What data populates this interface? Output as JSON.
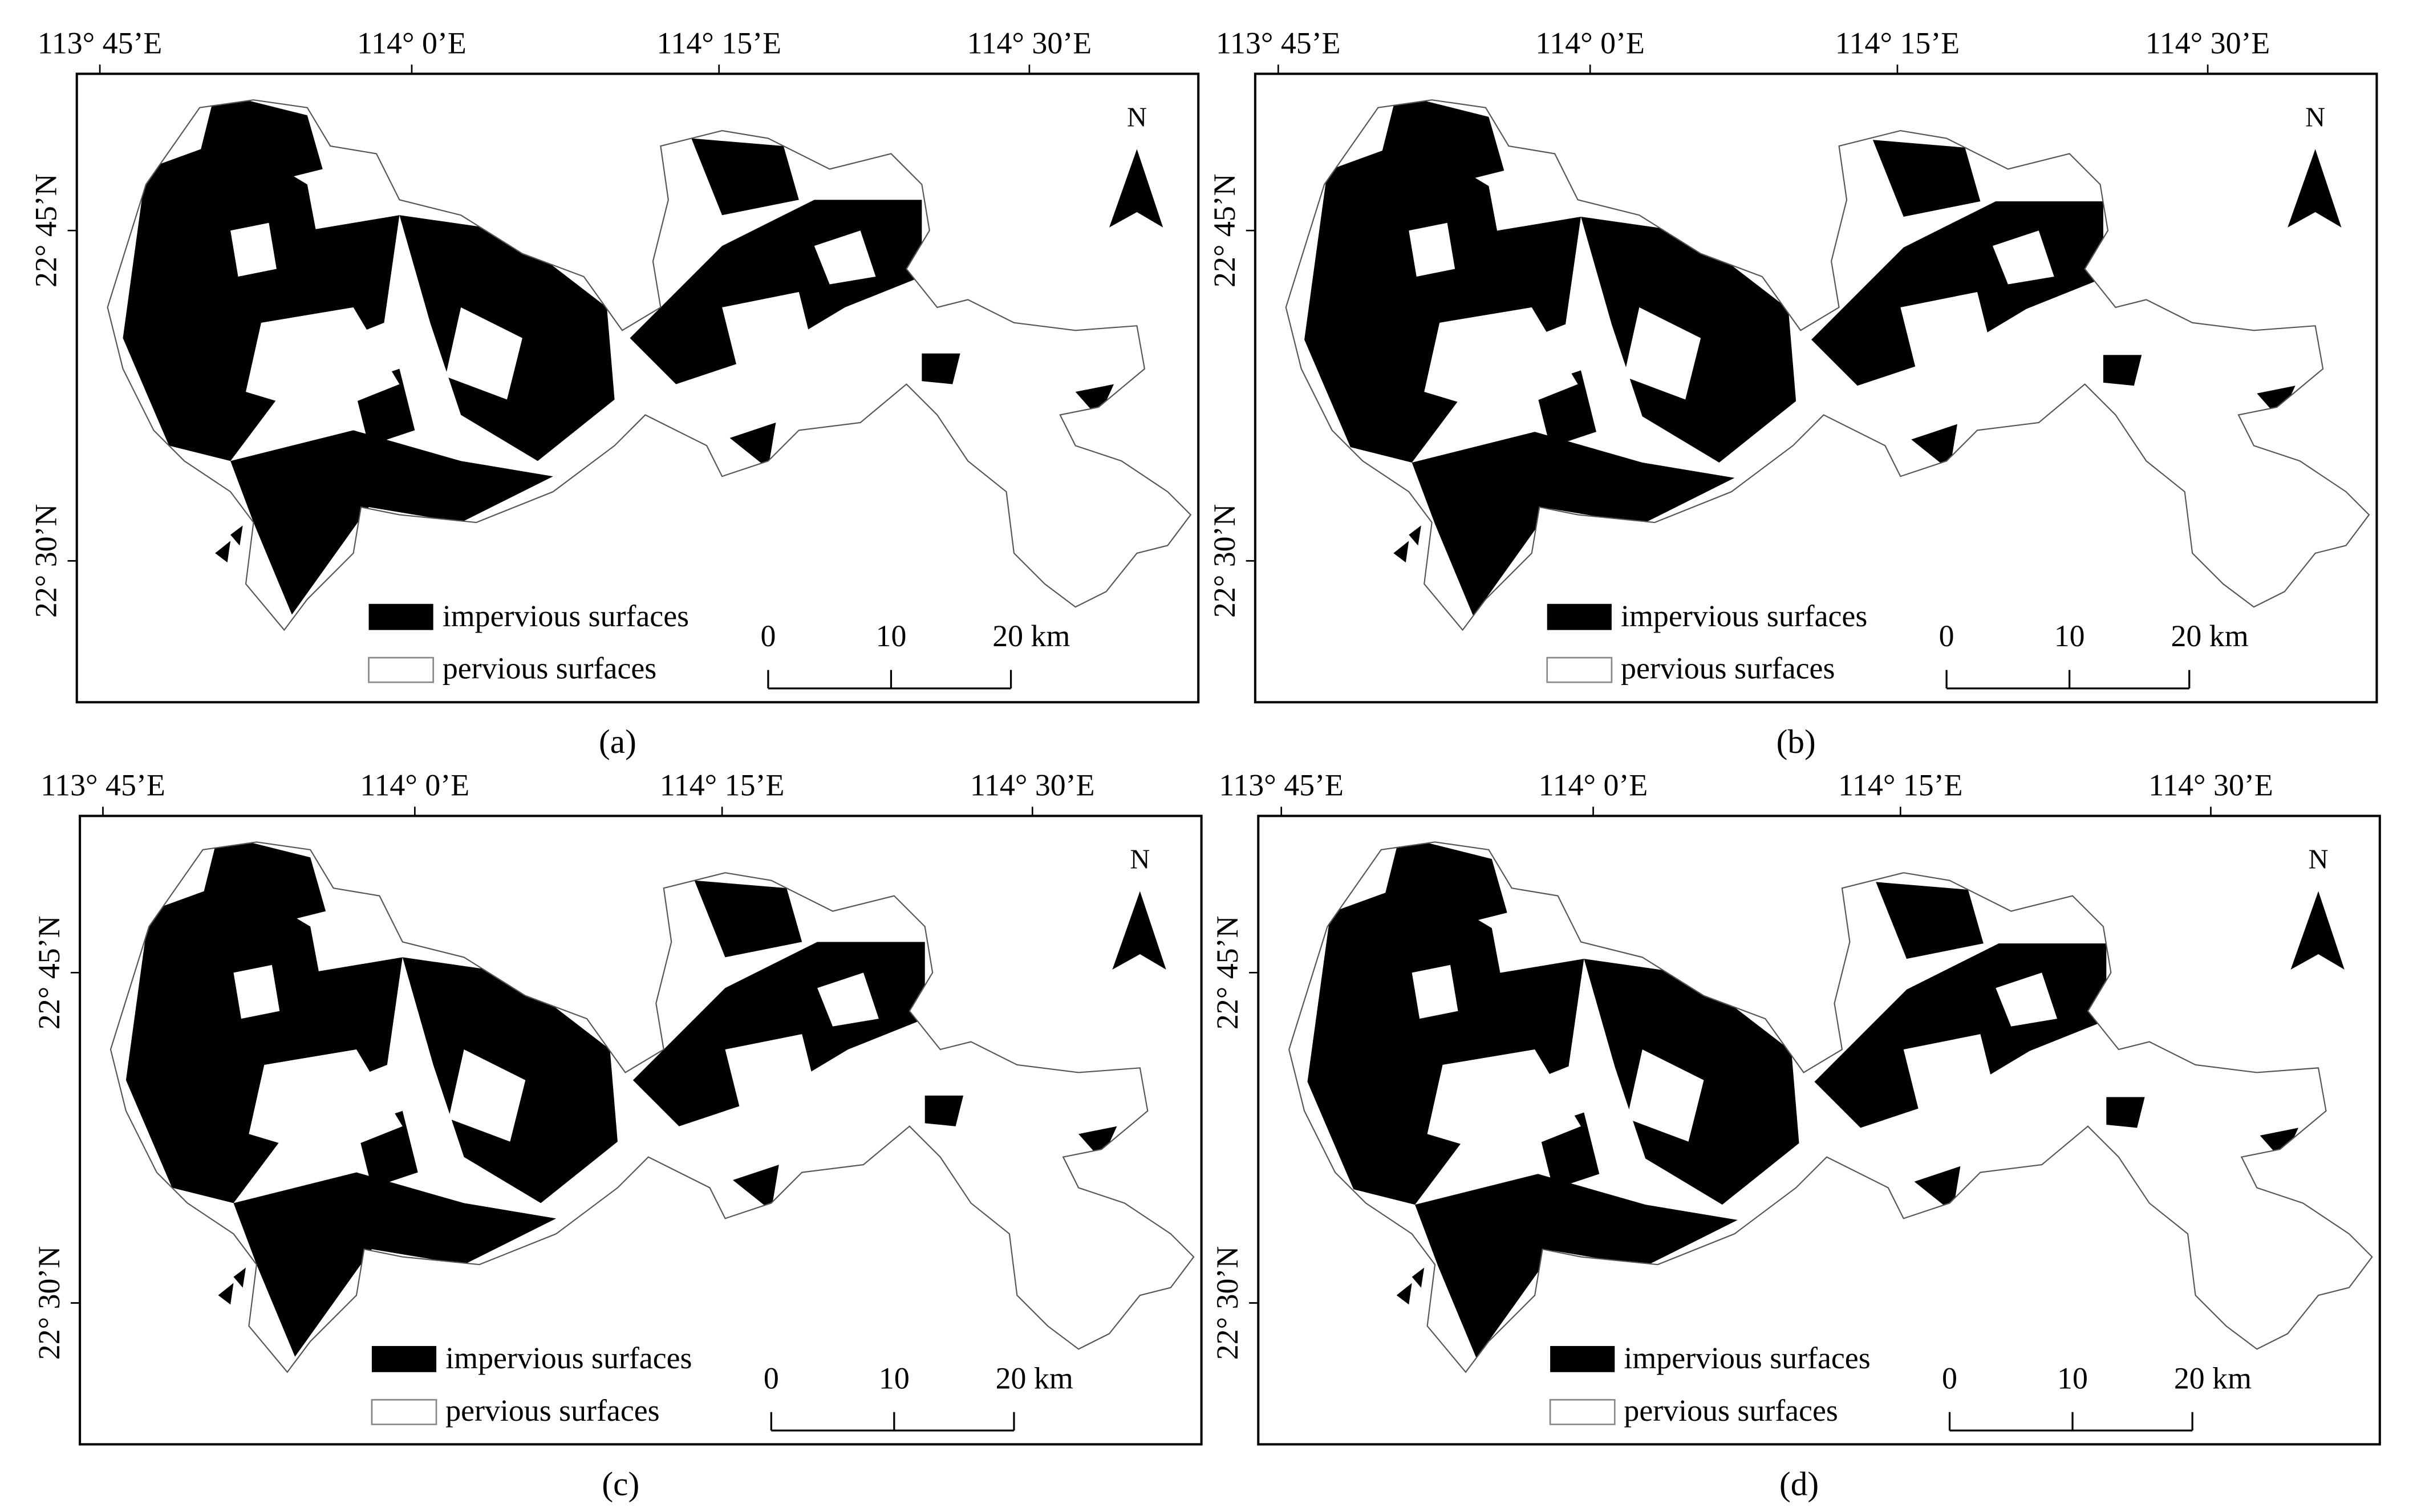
{
  "panels": [
    {
      "label": "(a)"
    },
    {
      "label": "(b)"
    },
    {
      "label": "(c)"
    },
    {
      "label": "(d)"
    }
  ],
  "longitude_labels": [
    "113° 45’E",
    "114° 0’E",
    "114° 15’E",
    "114° 30’E"
  ],
  "latitude_labels": [
    "22° 45’N",
    "22° 30’N"
  ],
  "north": "N",
  "legend": [
    "impervious surfaces",
    "pervious surfaces"
  ],
  "scale_bar": [
    "0",
    "10",
    "20 km"
  ]
}
